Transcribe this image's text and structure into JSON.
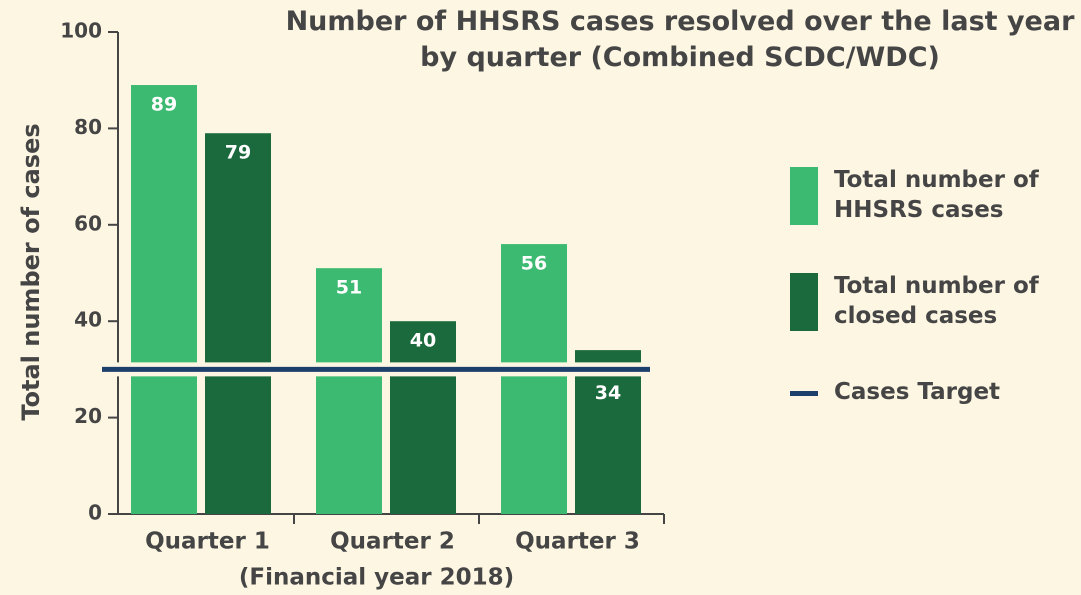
{
  "chart_data": {
    "type": "bar",
    "title": "Number of HHSRS cases resolved over the last year by quarter (Combined SCDC/WDC)",
    "x_label": "(Financial year 2018)",
    "y_label": "Total number of cases",
    "categories": [
      "Quarter 1",
      "Quarter 2",
      "Quarter 3"
    ],
    "series": [
      {
        "name": "Total number of HHSRS cases",
        "color": "#3dba72",
        "values": [
          89,
          51,
          56
        ]
      },
      {
        "name": "Total number of closed cases",
        "color": "#1b6a3d",
        "values": [
          79,
          40,
          34
        ]
      }
    ],
    "target": {
      "name": "Cases Target",
      "color": "#1c3f6b",
      "value": 30
    },
    "ylim": [
      0,
      100
    ],
    "yticks": [
      0,
      20,
      40,
      60,
      80,
      100
    ],
    "grid": false,
    "legend": "right"
  }
}
